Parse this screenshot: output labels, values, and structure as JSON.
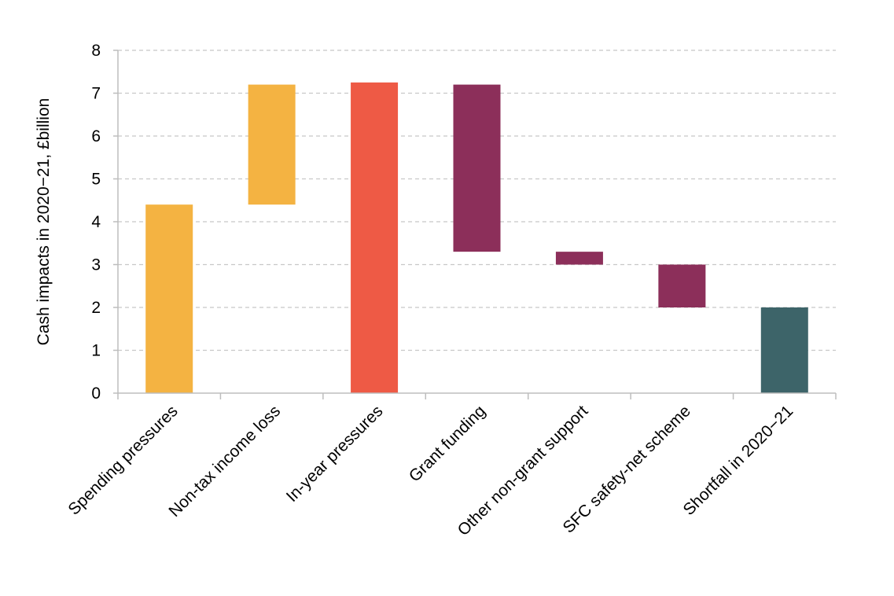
{
  "chart_data": {
    "type": "bar",
    "subtype": "waterfall",
    "title": "",
    "xlabel": "",
    "ylabel": "Cash impacts in 2020−21, £billion",
    "ylim": [
      0,
      8
    ],
    "yticks": [
      0,
      1,
      2,
      3,
      4,
      5,
      6,
      7,
      8
    ],
    "grid": true,
    "legend": "none",
    "categories": [
      "Spending pressures",
      "Non-tax income loss",
      "In-year pressures",
      "Grant funding",
      "Other non-grant support",
      "SFC safety-net scheme",
      "Shortfall in 2020−21"
    ],
    "bars": [
      {
        "category": "Spending pressures",
        "start": 0,
        "end": 4.4,
        "color": "#f4b342"
      },
      {
        "category": "Non-tax income loss",
        "start": 4.4,
        "end": 7.2,
        "color": "#f4b342"
      },
      {
        "category": "In-year pressures",
        "start": 0,
        "end": 7.25,
        "color": "#ee5a45"
      },
      {
        "category": "Grant funding",
        "start": 3.3,
        "end": 7.2,
        "color": "#8c2f5a"
      },
      {
        "category": "Other non-grant support",
        "start": 3.0,
        "end": 3.3,
        "color": "#8c2f5a"
      },
      {
        "category": "SFC safety-net scheme",
        "start": 2.0,
        "end": 3.0,
        "color": "#8c2f5a"
      },
      {
        "category": "Shortfall in 2020−21",
        "start": 0,
        "end": 2.0,
        "color": "#3d6469"
      }
    ]
  }
}
